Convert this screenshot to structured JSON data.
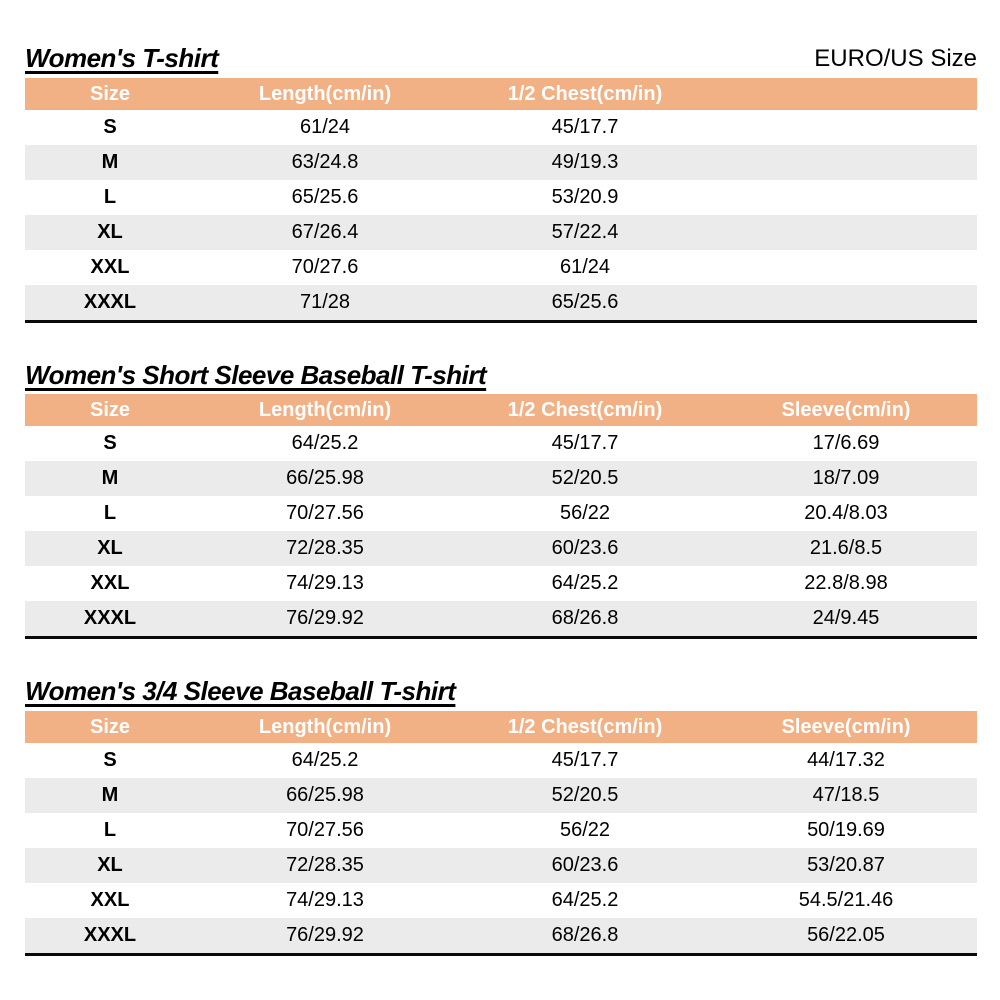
{
  "page": {
    "size_standard_label": "EURO/US Size",
    "colors": {
      "header_bg": "#F2B085",
      "header_text": "#FFFFFF",
      "row_alt_bg": "#EBEBEB",
      "table_bottom_border": "#0A0A0A"
    }
  },
  "tables": [
    {
      "title": "Women's T-shirt",
      "columns": [
        "Size",
        "Length(cm/in)",
        "1/2 Chest(cm/in)",
        ""
      ],
      "rows": [
        [
          "S",
          "61/24",
          "45/17.7",
          ""
        ],
        [
          "M",
          "63/24.8",
          "49/19.3",
          ""
        ],
        [
          "L",
          "65/25.6",
          "53/20.9",
          ""
        ],
        [
          "XL",
          "67/26.4",
          "57/22.4",
          ""
        ],
        [
          "XXL",
          "70/27.6",
          "61/24",
          ""
        ],
        [
          "XXXL",
          "71/28",
          "65/25.6",
          ""
        ]
      ]
    },
    {
      "title": "Women's Short Sleeve Baseball T-shirt",
      "columns": [
        "Size",
        "Length(cm/in)",
        "1/2 Chest(cm/in)",
        "Sleeve(cm/in)"
      ],
      "rows": [
        [
          "S",
          "64/25.2",
          "45/17.7",
          "17/6.69"
        ],
        [
          "M",
          "66/25.98",
          "52/20.5",
          "18/7.09"
        ],
        [
          "L",
          "70/27.56",
          "56/22",
          "20.4/8.03"
        ],
        [
          "XL",
          "72/28.35",
          "60/23.6",
          "21.6/8.5"
        ],
        [
          "XXL",
          "74/29.13",
          "64/25.2",
          "22.8/8.98"
        ],
        [
          "XXXL",
          "76/29.92",
          "68/26.8",
          "24/9.45"
        ]
      ]
    },
    {
      "title": "Women's 3/4 Sleeve Baseball T-shirt",
      "columns": [
        "Size",
        "Length(cm/in)",
        "1/2 Chest(cm/in)",
        "Sleeve(cm/in)"
      ],
      "rows": [
        [
          "S",
          "64/25.2",
          "45/17.7",
          "44/17.32"
        ],
        [
          "M",
          "66/25.98",
          "52/20.5",
          "47/18.5"
        ],
        [
          "L",
          "70/27.56",
          "56/22",
          "50/19.69"
        ],
        [
          "XL",
          "72/28.35",
          "60/23.6",
          "53/20.87"
        ],
        [
          "XXL",
          "74/29.13",
          "64/25.2",
          "54.5/21.46"
        ],
        [
          "XXXL",
          "76/29.92",
          "68/26.8",
          "56/22.05"
        ]
      ]
    }
  ]
}
